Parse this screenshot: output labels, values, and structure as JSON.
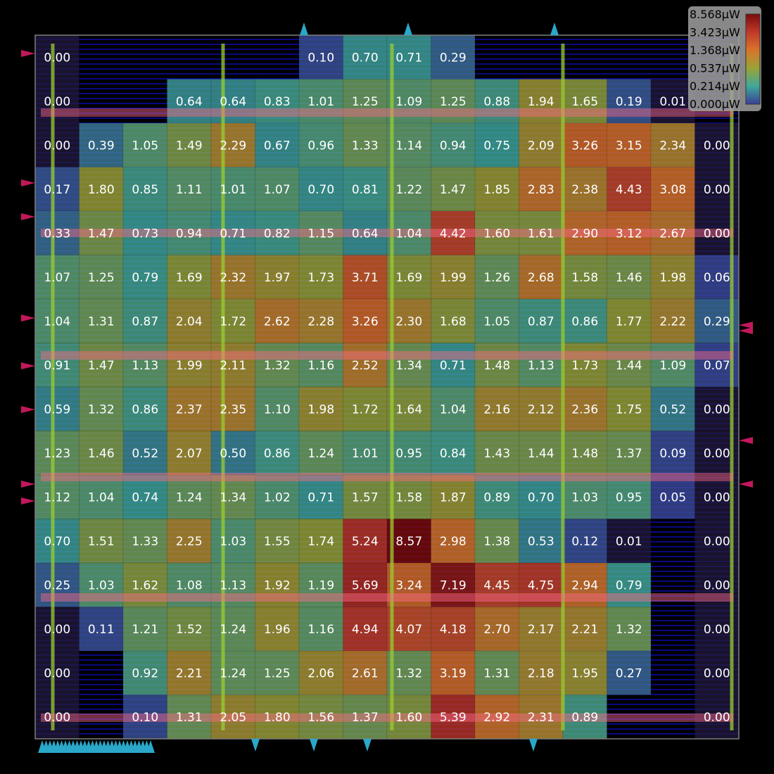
{
  "chart_data": {
    "type": "heatmap",
    "title": "",
    "unit": "µW",
    "grid": {
      "rows": 16,
      "cols": 16
    },
    "values": [
      [
        0.0,
        null,
        null,
        null,
        null,
        null,
        0.1,
        0.7,
        0.71,
        0.29,
        null,
        null,
        null,
        null,
        null,
        null
      ],
      [
        0.0,
        null,
        null,
        0.64,
        0.64,
        0.83,
        1.01,
        1.25,
        1.09,
        1.25,
        0.88,
        1.94,
        1.65,
        0.19,
        0.01,
        null
      ],
      [
        0.0,
        0.39,
        1.05,
        1.49,
        2.29,
        0.67,
        0.96,
        1.33,
        1.14,
        0.94,
        0.75,
        2.09,
        3.26,
        3.15,
        2.34,
        0.0
      ],
      [
        0.17,
        1.8,
        0.85,
        1.11,
        1.01,
        1.07,
        0.7,
        0.81,
        1.22,
        1.47,
        1.85,
        2.83,
        2.38,
        4.43,
        3.08,
        0.0
      ],
      [
        0.33,
        1.47,
        0.73,
        0.94,
        0.71,
        0.82,
        1.15,
        0.64,
        1.04,
        4.42,
        1.6,
        1.61,
        2.9,
        3.12,
        2.67,
        0.0
      ],
      [
        1.07,
        1.25,
        0.79,
        1.69,
        2.32,
        1.97,
        1.73,
        3.71,
        1.69,
        1.99,
        1.26,
        2.68,
        1.58,
        1.46,
        1.98,
        0.06
      ],
      [
        1.04,
        1.31,
        0.87,
        2.04,
        1.72,
        2.62,
        2.28,
        3.26,
        2.3,
        1.68,
        1.05,
        0.87,
        0.86,
        1.77,
        2.22,
        0.29
      ],
      [
        0.91,
        1.47,
        1.13,
        1.99,
        2.11,
        1.32,
        1.16,
        2.52,
        1.34,
        0.71,
        1.48,
        1.13,
        1.73,
        1.44,
        1.09,
        0.07
      ],
      [
        0.59,
        1.32,
        0.86,
        2.37,
        2.35,
        1.1,
        1.98,
        1.72,
        1.64,
        1.04,
        2.16,
        2.12,
        2.36,
        1.75,
        0.52,
        0.0
      ],
      [
        1.23,
        1.46,
        0.52,
        2.07,
        0.5,
        0.86,
        1.24,
        1.01,
        0.95,
        0.84,
        1.43,
        1.44,
        1.48,
        1.37,
        0.09,
        0.0
      ],
      [
        1.12,
        1.04,
        0.74,
        1.24,
        1.34,
        1.02,
        0.71,
        1.57,
        1.58,
        1.87,
        0.89,
        0.7,
        1.03,
        0.95,
        0.05,
        0.0
      ],
      [
        0.7,
        1.51,
        1.33,
        2.25,
        1.03,
        1.55,
        1.74,
        5.24,
        8.57,
        2.98,
        1.38,
        0.53,
        0.12,
        0.01,
        null,
        0.0
      ],
      [
        0.25,
        1.03,
        1.62,
        1.08,
        1.13,
        1.92,
        1.19,
        5.69,
        3.24,
        7.19,
        4.45,
        4.75,
        2.94,
        0.79,
        null,
        0.0
      ],
      [
        0.0,
        0.11,
        1.21,
        1.52,
        1.24,
        1.96,
        1.16,
        4.94,
        4.07,
        4.18,
        2.7,
        2.17,
        2.21,
        1.32,
        null,
        0.0
      ],
      [
        0.0,
        null,
        0.92,
        2.21,
        1.24,
        1.25,
        2.06,
        2.61,
        1.32,
        3.19,
        1.31,
        2.18,
        1.95,
        0.27,
        null,
        0.0
      ],
      [
        0.0,
        null,
        0.1,
        1.31,
        2.05,
        1.8,
        1.56,
        1.37,
        1.6,
        5.39,
        2.92,
        2.31,
        0.89,
        null,
        null,
        0.0
      ]
    ],
    "legend": {
      "placement": "top-right",
      "stops": [
        "8.568µW",
        "3.423µW",
        "1.368µW",
        "0.537µW",
        "0.214µW",
        "0.000µW"
      ],
      "colors": [
        "#7a0b0b",
        "#c0392b",
        "#d9742a",
        "#9aa336",
        "#3fa89a",
        "#3a3f98"
      ]
    },
    "colors": {
      "background": "#000000",
      "die_outline": "#7f7f7f",
      "track_line": "#1010e6",
      "power_rail_vertical": "#9acd32",
      "power_rail_horizontal": "#ff6a8a",
      "pin_top_bottom": "#2aa7c9",
      "pin_left_right": "#c2185b",
      "empty_cell": "#231a3d",
      "label": "#ffffff"
    }
  }
}
